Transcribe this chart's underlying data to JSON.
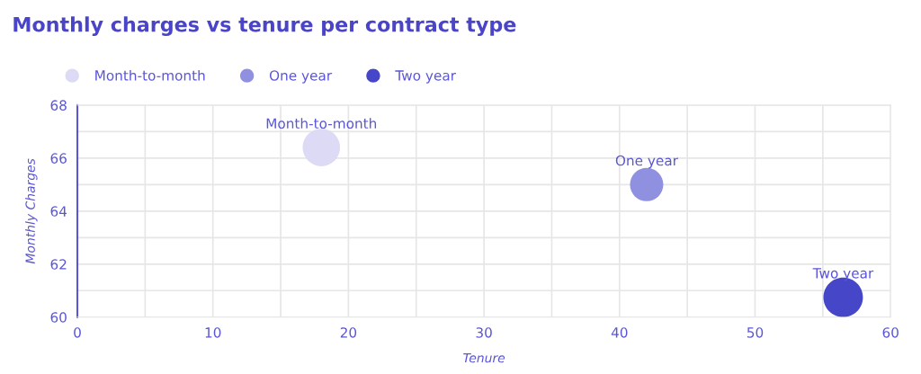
{
  "chart_data": {
    "type": "bubble",
    "title": "Monthly charges vs tenure per contract type",
    "xlabel": "Tenure",
    "ylabel": "Monthly Charges",
    "series": [
      {
        "name": "Month-to-month",
        "color": "#dcdaf5",
        "x": [
          18.0
        ],
        "values": [
          66.4
        ],
        "sizes": [
          0.9
        ]
      },
      {
        "name": "One year",
        "color": "#9090e0",
        "x": [
          42.0
        ],
        "values": [
          65.0
        ],
        "sizes": [
          0.71
        ]
      },
      {
        "name": "Two year",
        "color": "#4646c8",
        "x": [
          56.5
        ],
        "values": [
          60.75
        ],
        "sizes": [
          1
        ]
      }
    ],
    "xlim": [
      0,
      60
    ],
    "xticks": [
      0,
      {
        "value": 5,
        "label": null
      },
      10,
      {
        "value": 15,
        "label": null
      },
      20,
      {
        "value": 25,
        "label": null
      },
      30,
      {
        "value": 35,
        "label": null
      },
      40,
      {
        "value": 45,
        "label": null
      },
      50,
      {
        "value": 55,
        "label": null
      },
      60
    ],
    "ylim": [
      60,
      68
    ],
    "yticks": [
      60,
      {
        "value": 61,
        "label": null
      },
      62,
      {
        "value": 63,
        "label": null
      },
      64,
      {
        "value": 65,
        "label": null
      },
      66,
      {
        "value": 67,
        "label": null
      },
      68
    ],
    "grid": true,
    "legend": "top left",
    "marker": "circle"
  }
}
